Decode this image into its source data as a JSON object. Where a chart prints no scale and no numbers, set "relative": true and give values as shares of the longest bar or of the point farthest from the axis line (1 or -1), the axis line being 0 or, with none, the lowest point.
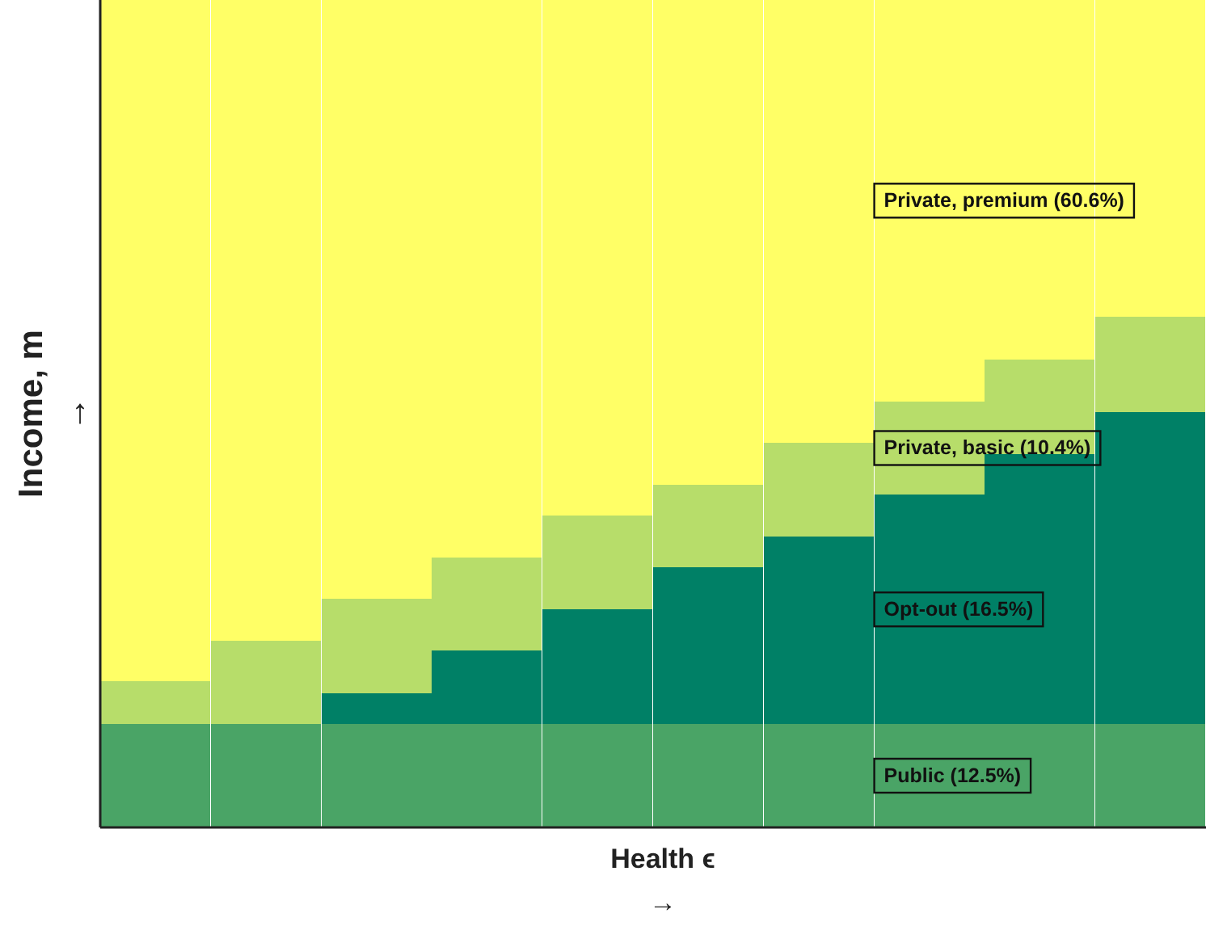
{
  "chart_data": {
    "type": "bar",
    "stacked": true,
    "relative": true,
    "tick_labels": false,
    "xlabel": "Health ϵ\n→",
    "ylabel": "Income, m\n→",
    "categories": [
      null,
      null,
      null,
      null,
      null,
      null,
      null,
      null,
      null,
      null
    ],
    "series": [
      {
        "name": "Public (12.5%)",
        "color": "#4aa466",
        "values": [
          0.125,
          0.125,
          0.125,
          0.125,
          0.125,
          0.125,
          0.125,
          0.125,
          0.125,
          0.125
        ]
      },
      {
        "name": "Opt-out (16.5%)",
        "color": "#008066",
        "values": [
          0,
          0,
          0.037,
          0.089,
          0.139,
          0.189,
          0.227,
          0.277,
          0.326,
          0.377
        ]
      },
      {
        "name": "Private, basic (10.4%)",
        "color": "#b7dd6a",
        "values": [
          0.052,
          0.101,
          0.114,
          0.112,
          0.113,
          0.1,
          0.113,
          0.113,
          0.114,
          0.115
        ]
      },
      {
        "name": "Private, premium (60.6%)",
        "color": "#ffff66",
        "values": [
          0.823,
          0.774,
          0.724,
          0.674,
          0.623,
          0.586,
          0.535,
          0.485,
          0.435,
          0.383
        ]
      }
    ]
  }
}
